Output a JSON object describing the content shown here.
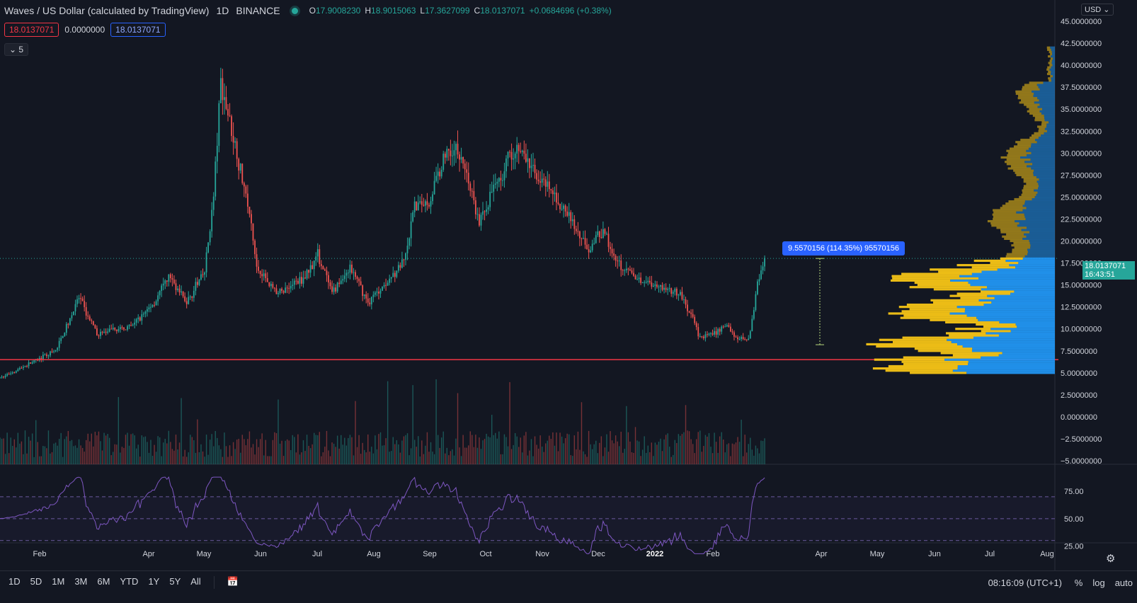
{
  "header": {
    "title": "Waves / US Dollar (calculated by TradingView)",
    "interval": "1D",
    "exchange": "BINANCE",
    "ohlc": {
      "o_label": "O",
      "o": "17.9008230",
      "h_label": "H",
      "h": "18.9015063",
      "l_label": "L",
      "l": "17.3627099",
      "c_label": "C",
      "c": "18.0137071",
      "change": "+0.0684696 (+0.38%)"
    },
    "bid": "18.0137071",
    "spread": "0.0000000",
    "ask": "18.0137071",
    "collapse_count": "5"
  },
  "currency": "USD",
  "measure_label": "9.5570156 (114.35%) 95570156",
  "price_label": {
    "price": "18.0137071",
    "countdown": "16:43:51"
  },
  "colors": {
    "up": "#26a69a",
    "down": "#ef5350",
    "rsi": "#7e57c2",
    "vp_up": "#2196f3",
    "vp_down": "#f7c516",
    "hline": "#f23645"
  },
  "bottom": {
    "ranges": [
      "1D",
      "5D",
      "1M",
      "3M",
      "6M",
      "YTD",
      "1Y",
      "5Y",
      "All"
    ],
    "clock": "08:16:09 (UTC+1)",
    "pct": "%",
    "log": "log",
    "auto": "auto"
  },
  "chart_data": [
    {
      "type": "candlestick",
      "title": "Waves / US Dollar",
      "y_ticks": [
        "45.0000000",
        "42.5000000",
        "40.0000000",
        "37.5000000",
        "35.0000000",
        "32.5000000",
        "30.0000000",
        "27.5000000",
        "25.0000000",
        "22.5000000",
        "20.0000000",
        "17.5000000",
        "15.0000000",
        "12.5000000",
        "10.0000000",
        "7.5000000",
        "5.0000000",
        "2.5000000",
        "0.0000000",
        "−2.5000000",
        "−5.0000000"
      ],
      "ylim": [
        -5,
        45
      ],
      "x_ticks": [
        "Feb",
        "Apr",
        "May",
        "Jun",
        "Jul",
        "Aug",
        "Sep",
        "Oct",
        "Nov",
        "Dec",
        "2022",
        "Feb",
        "Apr",
        "May",
        "Jun",
        "Jul",
        "Aug"
      ],
      "price_path": [
        {
          "date": "2021-01-15",
          "close": 5.8
        },
        {
          "date": "2021-02-01",
          "close": 7.5
        },
        {
          "date": "2021-02-14",
          "close": 13.5
        },
        {
          "date": "2021-02-24",
          "close": 9.4
        },
        {
          "date": "2021-03-15",
          "close": 10.3
        },
        {
          "date": "2021-03-28",
          "close": 13.0
        },
        {
          "date": "2021-04-05",
          "close": 16.0
        },
        {
          "date": "2021-04-15",
          "close": 13.0
        },
        {
          "date": "2021-04-25",
          "close": 16.5
        },
        {
          "date": "2021-04-30",
          "close": 25.0
        },
        {
          "date": "2021-05-04",
          "close": 38.0
        },
        {
          "date": "2021-05-12",
          "close": 31.0
        },
        {
          "date": "2021-05-20",
          "close": 23.0
        },
        {
          "date": "2021-05-24",
          "close": 17.0
        },
        {
          "date": "2021-06-05",
          "close": 14.0
        },
        {
          "date": "2021-06-20",
          "close": 16.0
        },
        {
          "date": "2021-06-27",
          "close": 18.5
        },
        {
          "date": "2021-07-05",
          "close": 14.0
        },
        {
          "date": "2021-07-15",
          "close": 17.0
        },
        {
          "date": "2021-07-25",
          "close": 13.0
        },
        {
          "date": "2021-08-05",
          "close": 15.5
        },
        {
          "date": "2021-08-15",
          "close": 18.0
        },
        {
          "date": "2021-08-20",
          "close": 24.0
        },
        {
          "date": "2021-08-28",
          "close": 24.5
        },
        {
          "date": "2021-09-07",
          "close": 30.5
        },
        {
          "date": "2021-09-15",
          "close": 30.0
        },
        {
          "date": "2021-09-25",
          "close": 22.0
        },
        {
          "date": "2021-10-01",
          "close": 25.0
        },
        {
          "date": "2021-10-15",
          "close": 31.0
        },
        {
          "date": "2021-10-25",
          "close": 28.0
        },
        {
          "date": "2021-11-10",
          "close": 24.0
        },
        {
          "date": "2021-11-25",
          "close": 19.0
        },
        {
          "date": "2021-12-03",
          "close": 21.5
        },
        {
          "date": "2021-12-10",
          "close": 17.5
        },
        {
          "date": "2021-12-20",
          "close": 16.0
        },
        {
          "date": "2022-01-01",
          "close": 15.0
        },
        {
          "date": "2022-01-15",
          "close": 14.0
        },
        {
          "date": "2022-01-22",
          "close": 11.0
        },
        {
          "date": "2022-01-26",
          "close": 9.0
        },
        {
          "date": "2022-02-03",
          "close": 9.5
        },
        {
          "date": "2022-02-10",
          "close": 10.5
        },
        {
          "date": "2022-02-15",
          "close": 9.0
        },
        {
          "date": "2022-02-22",
          "close": 8.8
        },
        {
          "date": "2022-02-28",
          "close": 16.0
        },
        {
          "date": "2022-03-04",
          "close": 18.0137
        }
      ],
      "horizontal_line": 6.5,
      "current_price": 18.0137071
    },
    {
      "type": "line",
      "title": "RSI",
      "y_ticks": [
        "75.00",
        "50.00",
        "25.00"
      ],
      "ylim": [
        15,
        90
      ],
      "bands": [
        70,
        50,
        30
      ]
    }
  ]
}
